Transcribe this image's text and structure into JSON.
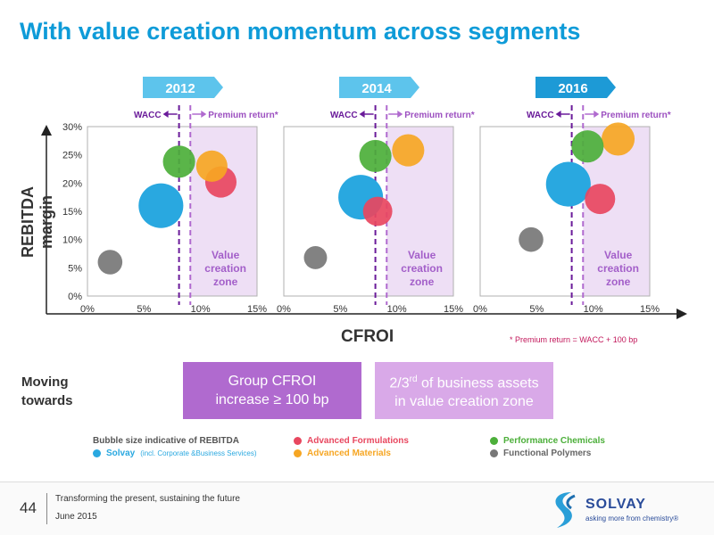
{
  "title": "With value creation momentum across segments",
  "axis": {
    "ylabel": "REBITDA margin",
    "xlabel": "CFROI",
    "y_ticks": [
      "0%",
      "5%",
      "10%",
      "15%",
      "20%",
      "25%",
      "30%"
    ],
    "x_ticks": [
      "0%",
      "5%",
      "10%",
      "15%"
    ]
  },
  "wacc_label": "WACC",
  "premium_label": "Premium return*",
  "zone_label": [
    "Value",
    "creation",
    "zone"
  ],
  "footnote": "* Premium return = WACC + 100 bp",
  "moving_towards": [
    "Moving",
    "towards"
  ],
  "target_boxes": {
    "box1_line1": "Group CFROI",
    "box1_line2": "increase ≥ 100 bp",
    "box2_line1_a": "2/3",
    "box2_line1_sup": "rd",
    "box2_line1_b": " of business assets",
    "box2_line2": "in value creation zone"
  },
  "legend": {
    "title": "Bubble size indicative of REBITDA",
    "items": [
      {
        "name": "Solvay",
        "note": "(incl. Corporate &Business Services)",
        "color": "#29a8e0"
      },
      {
        "name": "Advanced Formulations",
        "color": "#e8475f"
      },
      {
        "name": "Advanced Materials",
        "color": "#f6a623"
      },
      {
        "name": "Performance Chemicals",
        "color": "#4caf3a"
      },
      {
        "name": "Functional Polymers",
        "color": "#777777"
      }
    ]
  },
  "footer": {
    "page": "44",
    "line1": "Transforming the present, sustaining the future",
    "line2": "June 2015",
    "logo": "SOLVAY",
    "tagline": "asking more from chemistry®"
  },
  "chart_data": [
    {
      "type": "scatter",
      "title": "2012",
      "xlabel": "CFROI",
      "ylabel": "REBITDA margin",
      "xlim": [
        0,
        15
      ],
      "ylim": [
        0,
        30
      ],
      "wacc": 8.1,
      "premium_return": 9.1,
      "series": [
        {
          "name": "Solvay",
          "x": 6.5,
          "y": 16,
          "size": 3,
          "color": "#29a8e0"
        },
        {
          "name": "Advanced Formulations",
          "x": 11.8,
          "y": 20.2,
          "size": 1.1,
          "color": "#e8475f"
        },
        {
          "name": "Advanced Materials",
          "x": 11.0,
          "y": 23,
          "size": 1.1,
          "color": "#f6a623"
        },
        {
          "name": "Performance Chemicals",
          "x": 8.1,
          "y": 23.8,
          "size": 1.2,
          "color": "#4caf3a"
        },
        {
          "name": "Functional Polymers",
          "x": 2.0,
          "y": 6,
          "size": 0.5,
          "color": "#777777"
        }
      ]
    },
    {
      "type": "scatter",
      "title": "2014",
      "xlabel": "CFROI",
      "ylabel": "REBITDA margin",
      "xlim": [
        0,
        15
      ],
      "ylim": [
        0,
        30
      ],
      "wacc": 8.1,
      "premium_return": 9.1,
      "series": [
        {
          "name": "Solvay",
          "x": 6.8,
          "y": 17.5,
          "size": 3,
          "color": "#29a8e0"
        },
        {
          "name": "Advanced Formulations",
          "x": 8.3,
          "y": 15,
          "size": 0.9,
          "color": "#e8475f"
        },
        {
          "name": "Advanced Materials",
          "x": 11.0,
          "y": 25.8,
          "size": 1.2,
          "color": "#f6a623"
        },
        {
          "name": "Performance Chemicals",
          "x": 8.1,
          "y": 24.8,
          "size": 1.2,
          "color": "#4caf3a"
        },
        {
          "name": "Functional Polymers",
          "x": 2.8,
          "y": 6.8,
          "size": 0.4,
          "color": "#777777"
        }
      ]
    },
    {
      "type": "scatter",
      "title": "2016",
      "xlabel": "CFROI",
      "ylabel": "REBITDA margin",
      "xlim": [
        0,
        15
      ],
      "ylim": [
        0,
        30
      ],
      "wacc": 8.1,
      "premium_return": 9.1,
      "series": [
        {
          "name": "Solvay",
          "x": 7.8,
          "y": 19.8,
          "size": 3,
          "color": "#29a8e0"
        },
        {
          "name": "Advanced Formulations",
          "x": 10.6,
          "y": 17.2,
          "size": 1.0,
          "color": "#e8475f"
        },
        {
          "name": "Advanced Materials",
          "x": 12.2,
          "y": 27.8,
          "size": 1.3,
          "color": "#f6a623"
        },
        {
          "name": "Performance Chemicals",
          "x": 9.5,
          "y": 26.5,
          "size": 1.2,
          "color": "#4caf3a"
        },
        {
          "name": "Functional Polymers",
          "x": 4.5,
          "y": 10,
          "size": 0.5,
          "color": "#777777"
        }
      ]
    }
  ]
}
